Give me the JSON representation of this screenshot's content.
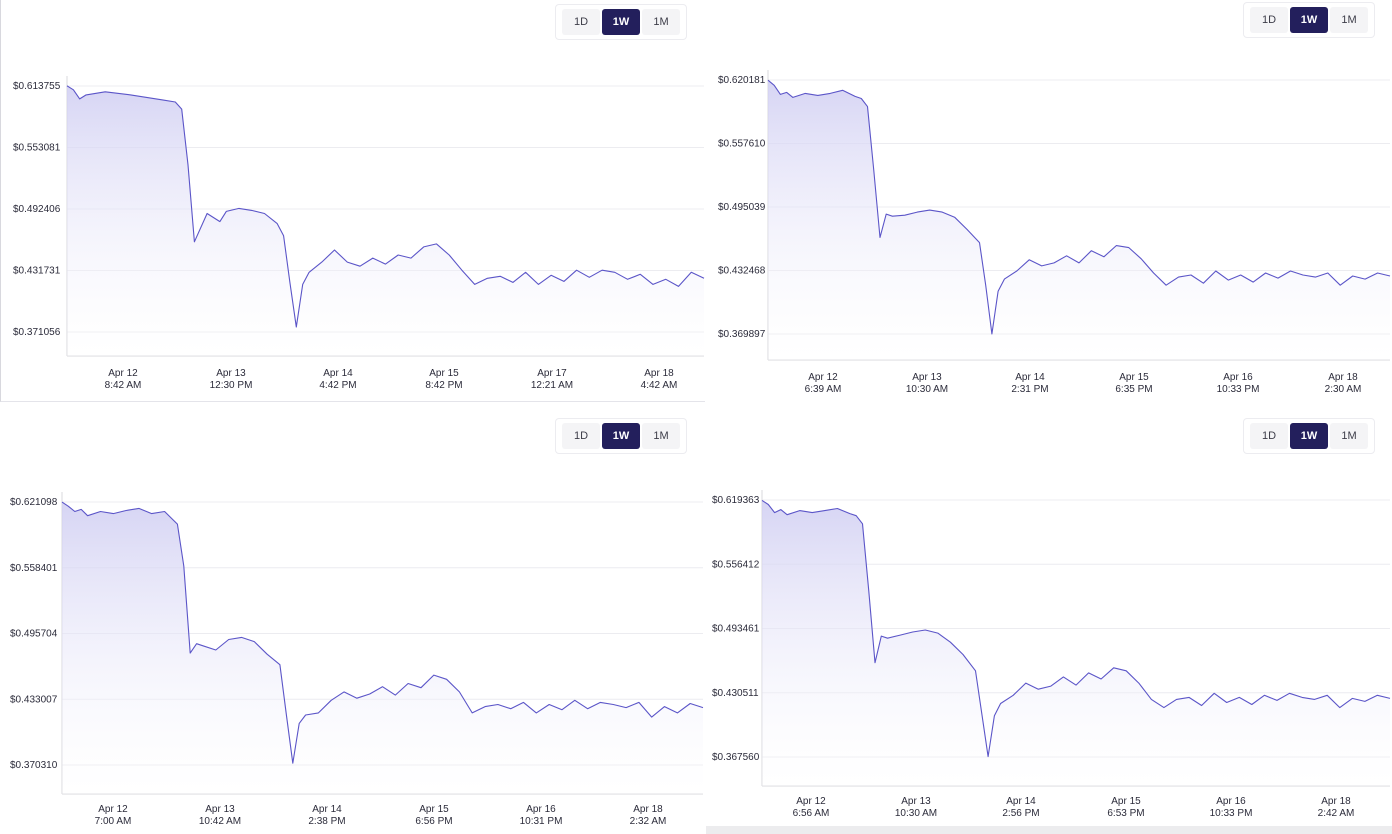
{
  "range_buttons": [
    "1D",
    "1W",
    "1M"
  ],
  "active_range": "1W",
  "colors": {
    "line": "#5b55c8",
    "fill_top": "#cfcdf2",
    "fill_bottom": "#ffffff",
    "active_button": "#231f5c",
    "button": "#f4f4f6"
  },
  "chart_data": [
    {
      "type": "area",
      "title": "",
      "xlabel": "",
      "ylabel": "",
      "grid": true,
      "legend": "none",
      "y_ticks": [
        "$0.613755",
        "$0.553081",
        "$0.492406",
        "$0.431731",
        "$0.371056"
      ],
      "ylim": [
        0.358,
        0.635
      ],
      "x_ticks": [
        {
          "date": "Apr 12",
          "time": "8:42 AM"
        },
        {
          "date": "Apr 13",
          "time": "12:30 PM"
        },
        {
          "date": "Apr 14",
          "time": "4:42 PM"
        },
        {
          "date": "Apr 15",
          "time": "8:42 PM"
        },
        {
          "date": "Apr 17",
          "time": "12:21 AM"
        },
        {
          "date": "Apr 18",
          "time": "4:42 AM"
        }
      ],
      "x": [
        0,
        0.01,
        0.02,
        0.03,
        0.06,
        0.1,
        0.15,
        0.17,
        0.18,
        0.19,
        0.2,
        0.22,
        0.24,
        0.25,
        0.27,
        0.29,
        0.31,
        0.33,
        0.34,
        0.35,
        0.36,
        0.37,
        0.38,
        0.4,
        0.42,
        0.44,
        0.46,
        0.48,
        0.5,
        0.52,
        0.54,
        0.56,
        0.58,
        0.6,
        0.62,
        0.64,
        0.66,
        0.68,
        0.7,
        0.72,
        0.74,
        0.76,
        0.78,
        0.8,
        0.82,
        0.84,
        0.86,
        0.88,
        0.9,
        0.92,
        0.94,
        0.96,
        0.98,
        1.0
      ],
      "values": [
        0.614,
        0.61,
        0.601,
        0.605,
        0.608,
        0.605,
        0.6,
        0.598,
        0.591,
        0.536,
        0.46,
        0.488,
        0.48,
        0.49,
        0.493,
        0.491,
        0.488,
        0.478,
        0.466,
        0.42,
        0.376,
        0.418,
        0.43,
        0.44,
        0.452,
        0.44,
        0.436,
        0.444,
        0.438,
        0.447,
        0.444,
        0.455,
        0.458,
        0.447,
        0.432,
        0.418,
        0.424,
        0.426,
        0.42,
        0.43,
        0.418,
        0.427,
        0.421,
        0.432,
        0.425,
        0.432,
        0.43,
        0.423,
        0.428,
        0.418,
        0.423,
        0.416,
        0.43,
        0.424
      ]
    },
    {
      "type": "area",
      "title": "",
      "xlabel": "",
      "ylabel": "",
      "grid": true,
      "legend": "none",
      "y_ticks": [
        "$0.620181",
        "$0.557610",
        "$0.495039",
        "$0.432468",
        "$0.369897"
      ],
      "ylim": [
        0.356,
        0.642
      ],
      "x_ticks": [
        {
          "date": "Apr 12",
          "time": "6:39 AM"
        },
        {
          "date": "Apr 13",
          "time": "10:30 AM"
        },
        {
          "date": "Apr 14",
          "time": "2:31 PM"
        },
        {
          "date": "Apr 15",
          "time": "6:35 PM"
        },
        {
          "date": "Apr 16",
          "time": "10:33 PM"
        },
        {
          "date": "Apr 18",
          "time": "2:30 AM"
        }
      ],
      "x": [
        0,
        0.01,
        0.02,
        0.03,
        0.04,
        0.06,
        0.08,
        0.1,
        0.12,
        0.14,
        0.15,
        0.16,
        0.17,
        0.18,
        0.19,
        0.2,
        0.22,
        0.24,
        0.26,
        0.28,
        0.3,
        0.32,
        0.34,
        0.35,
        0.36,
        0.37,
        0.38,
        0.4,
        0.42,
        0.44,
        0.46,
        0.48,
        0.5,
        0.52,
        0.54,
        0.56,
        0.58,
        0.6,
        0.62,
        0.64,
        0.66,
        0.68,
        0.7,
        0.72,
        0.74,
        0.76,
        0.78,
        0.8,
        0.82,
        0.84,
        0.86,
        0.88,
        0.9,
        0.92,
        0.94,
        0.96,
        0.98,
        1.0
      ],
      "values": [
        0.62,
        0.615,
        0.606,
        0.608,
        0.603,
        0.607,
        0.605,
        0.607,
        0.61,
        0.604,
        0.602,
        0.594,
        0.532,
        0.465,
        0.488,
        0.486,
        0.487,
        0.49,
        0.492,
        0.49,
        0.485,
        0.473,
        0.46,
        0.418,
        0.37,
        0.412,
        0.424,
        0.432,
        0.443,
        0.437,
        0.44,
        0.447,
        0.44,
        0.452,
        0.446,
        0.457,
        0.455,
        0.444,
        0.43,
        0.418,
        0.426,
        0.428,
        0.42,
        0.432,
        0.423,
        0.428,
        0.421,
        0.43,
        0.425,
        0.432,
        0.428,
        0.426,
        0.43,
        0.418,
        0.427,
        0.424,
        0.43,
        0.427
      ]
    },
    {
      "type": "area",
      "title": "",
      "xlabel": "",
      "ylabel": "",
      "grid": true,
      "legend": "none",
      "y_ticks": [
        "$0.621098",
        "$0.558401",
        "$0.495704",
        "$0.433007",
        "$0.370310"
      ],
      "ylim": [
        0.342,
        0.625
      ],
      "x_ticks": [
        {
          "date": "Apr 12",
          "time": "7:00 AM"
        },
        {
          "date": "Apr 13",
          "time": "10:42 AM"
        },
        {
          "date": "Apr 14",
          "time": "2:38 PM"
        },
        {
          "date": "Apr 15",
          "time": "6:56 PM"
        },
        {
          "date": "Apr 16",
          "time": "10:31 PM"
        },
        {
          "date": "Apr 18",
          "time": "2:32 AM"
        }
      ],
      "x": [
        0,
        0.01,
        0.02,
        0.03,
        0.04,
        0.06,
        0.08,
        0.1,
        0.12,
        0.14,
        0.16,
        0.18,
        0.19,
        0.2,
        0.21,
        0.22,
        0.24,
        0.26,
        0.28,
        0.3,
        0.32,
        0.34,
        0.35,
        0.36,
        0.37,
        0.38,
        0.4,
        0.42,
        0.44,
        0.46,
        0.48,
        0.5,
        0.52,
        0.54,
        0.56,
        0.58,
        0.6,
        0.62,
        0.64,
        0.66,
        0.68,
        0.7,
        0.72,
        0.74,
        0.76,
        0.78,
        0.8,
        0.82,
        0.84,
        0.86,
        0.88,
        0.9,
        0.92,
        0.94,
        0.96,
        0.98,
        1.0
      ],
      "values": [
        0.621,
        0.617,
        0.612,
        0.614,
        0.608,
        0.612,
        0.61,
        0.613,
        0.615,
        0.61,
        0.612,
        0.6,
        0.56,
        0.477,
        0.486,
        0.484,
        0.48,
        0.49,
        0.492,
        0.488,
        0.476,
        0.466,
        0.418,
        0.372,
        0.41,
        0.418,
        0.42,
        0.432,
        0.44,
        0.434,
        0.438,
        0.445,
        0.437,
        0.448,
        0.444,
        0.456,
        0.452,
        0.44,
        0.42,
        0.426,
        0.428,
        0.424,
        0.43,
        0.42,
        0.428,
        0.423,
        0.432,
        0.424,
        0.43,
        0.428,
        0.425,
        0.43,
        0.416,
        0.426,
        0.42,
        0.429,
        0.425
      ]
    },
    {
      "type": "area",
      "title": "",
      "xlabel": "",
      "ylabel": "",
      "grid": true,
      "legend": "none",
      "y_ticks": [
        "$0.619363",
        "$0.556412",
        "$0.493461",
        "$0.430511",
        "$0.367560"
      ],
      "ylim": [
        0.342,
        0.625
      ],
      "x_ticks": [
        {
          "date": "Apr 12",
          "time": "6:56 AM"
        },
        {
          "date": "Apr 13",
          "time": "10:30 AM"
        },
        {
          "date": "Apr 14",
          "time": "2:56 PM"
        },
        {
          "date": "Apr 15",
          "time": "6:53 PM"
        },
        {
          "date": "Apr 16",
          "time": "10:33 PM"
        },
        {
          "date": "Apr 18",
          "time": "2:42 AM"
        }
      ],
      "x": [
        0,
        0.01,
        0.02,
        0.03,
        0.04,
        0.06,
        0.08,
        0.1,
        0.12,
        0.14,
        0.15,
        0.16,
        0.17,
        0.18,
        0.19,
        0.2,
        0.22,
        0.24,
        0.26,
        0.28,
        0.3,
        0.32,
        0.34,
        0.35,
        0.36,
        0.37,
        0.38,
        0.4,
        0.42,
        0.44,
        0.46,
        0.48,
        0.5,
        0.52,
        0.54,
        0.56,
        0.58,
        0.6,
        0.62,
        0.64,
        0.66,
        0.68,
        0.7,
        0.72,
        0.74,
        0.76,
        0.78,
        0.8,
        0.82,
        0.84,
        0.86,
        0.88,
        0.9,
        0.92,
        0.94,
        0.96,
        0.98,
        1.0
      ],
      "values": [
        0.619,
        0.615,
        0.607,
        0.61,
        0.605,
        0.609,
        0.607,
        0.609,
        0.611,
        0.606,
        0.604,
        0.596,
        0.53,
        0.46,
        0.486,
        0.484,
        0.487,
        0.49,
        0.492,
        0.489,
        0.48,
        0.468,
        0.452,
        0.41,
        0.368,
        0.408,
        0.42,
        0.428,
        0.44,
        0.434,
        0.437,
        0.446,
        0.438,
        0.45,
        0.444,
        0.455,
        0.452,
        0.44,
        0.424,
        0.416,
        0.424,
        0.426,
        0.418,
        0.43,
        0.421,
        0.426,
        0.419,
        0.428,
        0.423,
        0.43,
        0.426,
        0.424,
        0.428,
        0.416,
        0.425,
        0.422,
        0.428,
        0.425
      ]
    }
  ]
}
